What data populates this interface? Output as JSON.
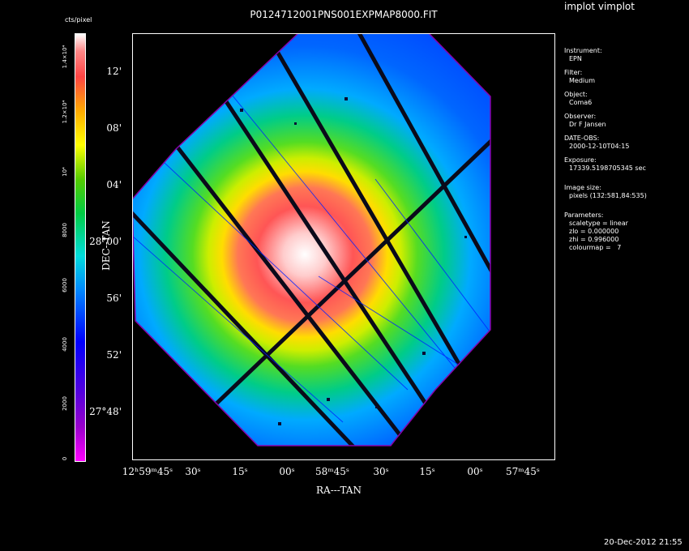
{
  "app_title": "implot vimplot",
  "image_title": "P0124712001PNS001EXPMAP8000.FIT",
  "colorbar": {
    "unit": "cts/pixel",
    "labels": [
      "0",
      "2000",
      "4000",
      "6000",
      "8000",
      "10⁴",
      "1.2×10⁴",
      "1.4×10⁴"
    ]
  },
  "axes": {
    "xlabel": "RA---TAN",
    "ylabel": "DEC--TAN",
    "xticks": [
      "12ʰ59ᵐ45ˢ",
      "30ˢ",
      "15ˢ",
      "00ˢ",
      "58ᵐ45ˢ",
      "30ˢ",
      "15ˢ",
      "00ˢ",
      "57ᵐ45ˢ"
    ],
    "yticks": [
      "12'",
      "08'",
      "04'",
      "28°00'",
      "56'",
      "52'",
      "27°48'"
    ]
  },
  "side_panel": [
    {
      "key": "Instrument:",
      "values": [
        "EPN"
      ]
    },
    {
      "key": "Filter:",
      "values": [
        "Medium"
      ]
    },
    {
      "key": "Object:",
      "values": [
        "Coma6"
      ]
    },
    {
      "key": "Observer:",
      "values": [
        "Dr F Jansen"
      ]
    },
    {
      "key": "DATE-OBS:",
      "values": [
        "2000-12-10T04:15"
      ]
    },
    {
      "key": "Exposure:",
      "values": [
        "17339.5198705345 sec"
      ]
    },
    {
      "key": "Image size:",
      "values": [
        "pixels (132:581,84:535)"
      ]
    },
    {
      "key": "Parameters:",
      "values": [
        "scaletype = linear",
        "zlo = 0.000000",
        "zhi = 0.996000",
        "colourmap =   7"
      ]
    }
  ],
  "timestamp": "20-Dec-2012 21:55",
  "colors": {
    "background": "#000000",
    "text": "#ffffff",
    "image_edge": "#0033ff",
    "chip_gap": "#111122"
  }
}
